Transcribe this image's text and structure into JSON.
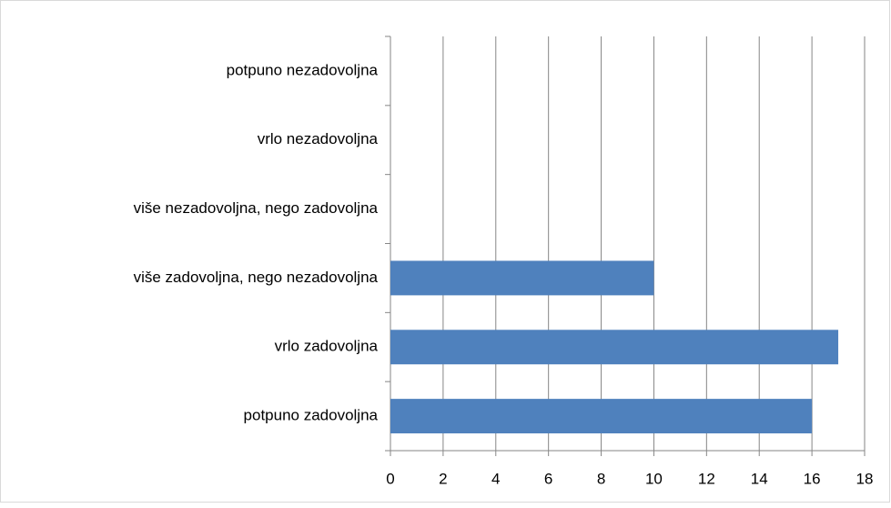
{
  "chart_data": {
    "type": "bar",
    "orientation": "horizontal",
    "categories": [
      "potpuno zadovoljna",
      "vrlo zadovoljna",
      "više zadovoljna, nego nezadovoljna",
      "više nezadovoljna, nego zadovoljna",
      "vrlo nezadovoljna",
      "potpuno nezadovoljna"
    ],
    "values": [
      16,
      17,
      10,
      0,
      0,
      0
    ],
    "color": "#4f81bd",
    "xlim": [
      0,
      18
    ],
    "xticks": [
      0,
      2,
      4,
      6,
      8,
      10,
      12,
      14,
      16,
      18
    ],
    "grid": true
  }
}
